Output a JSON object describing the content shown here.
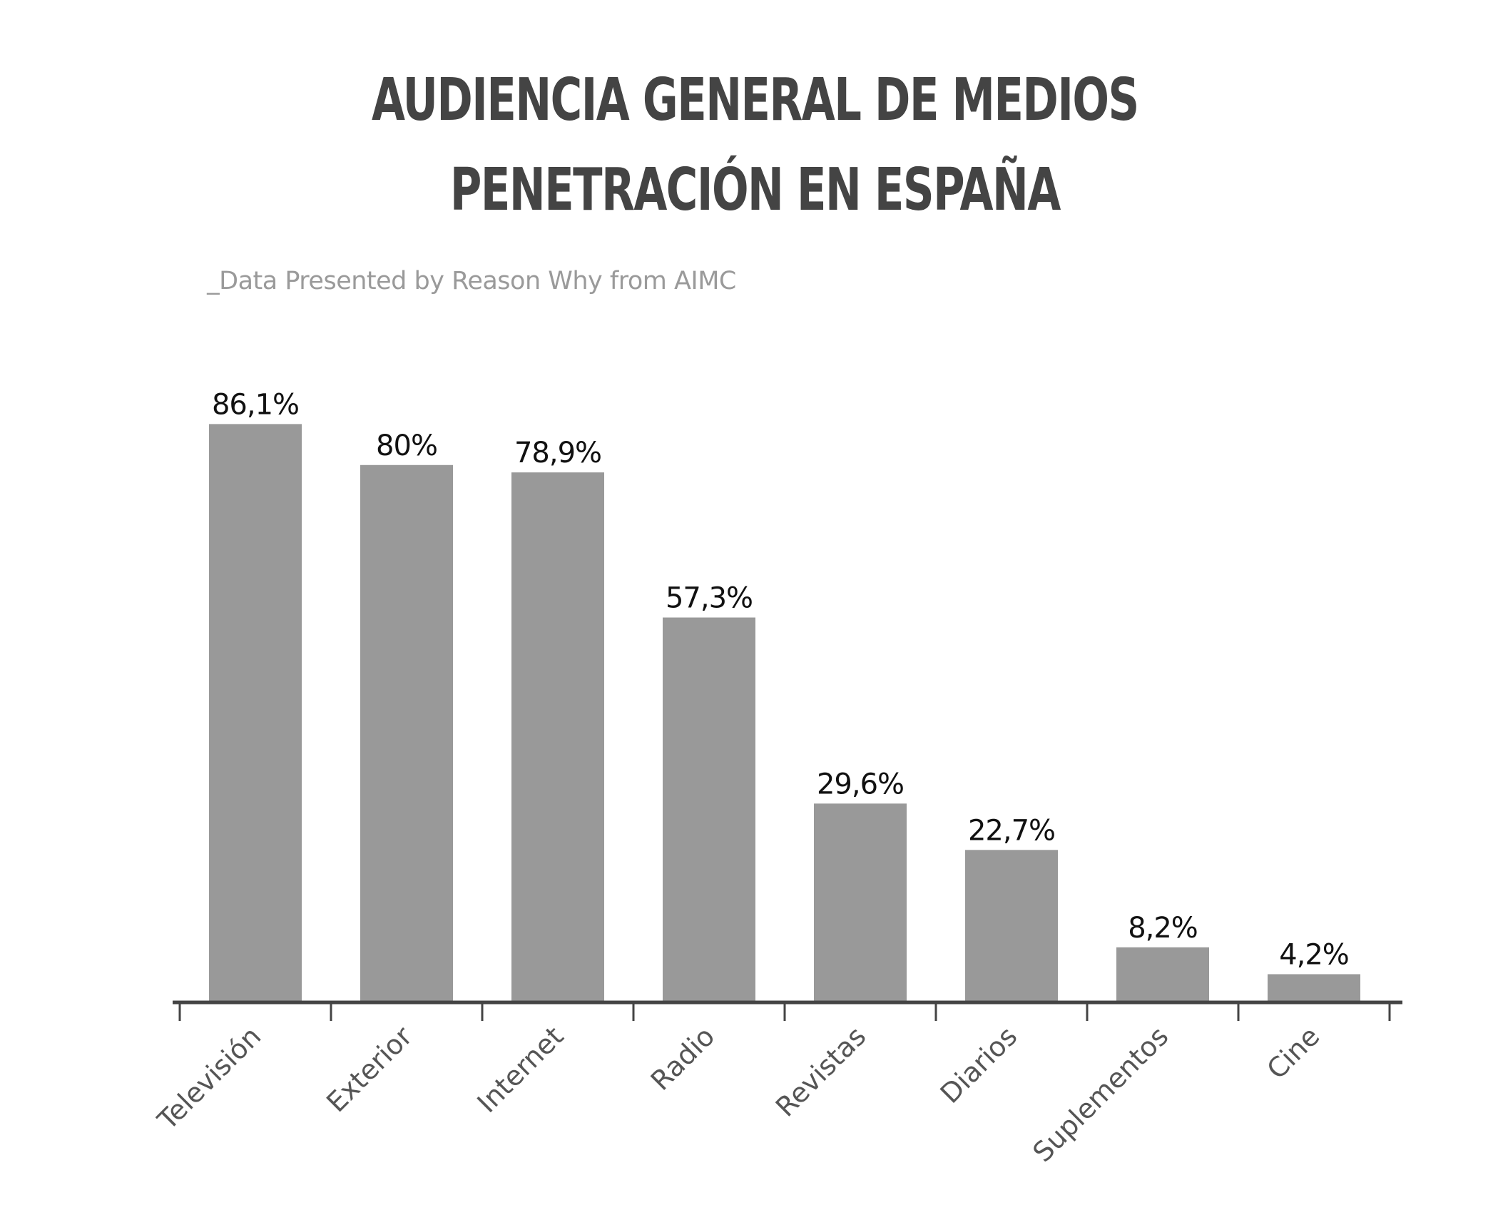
{
  "chart_data": {
    "type": "bar",
    "title_lines": [
      "AUDIENCIA GENERAL DE MEDIOS",
      "PENETRACIÓN EN ESPAÑA"
    ],
    "subtitle": "_Data Presented by Reason Why from AIMC",
    "categories": [
      "Televisión",
      "Exterior",
      "Internet",
      "Radio",
      "Revistas",
      "Diarios",
      "Suplementos",
      "Cine"
    ],
    "values": [
      86.1,
      80,
      78.9,
      57.3,
      29.6,
      22.7,
      8.2,
      4.2
    ],
    "value_labels": [
      "86,1%",
      "80%",
      "78,9%",
      "57,3%",
      "29,6%",
      "22,7%",
      "8,2%",
      "4,2%"
    ],
    "ylim": [
      0,
      100
    ],
    "grid": false,
    "legend": "none",
    "bar_color": "#999999",
    "axis_color": "#444444"
  }
}
